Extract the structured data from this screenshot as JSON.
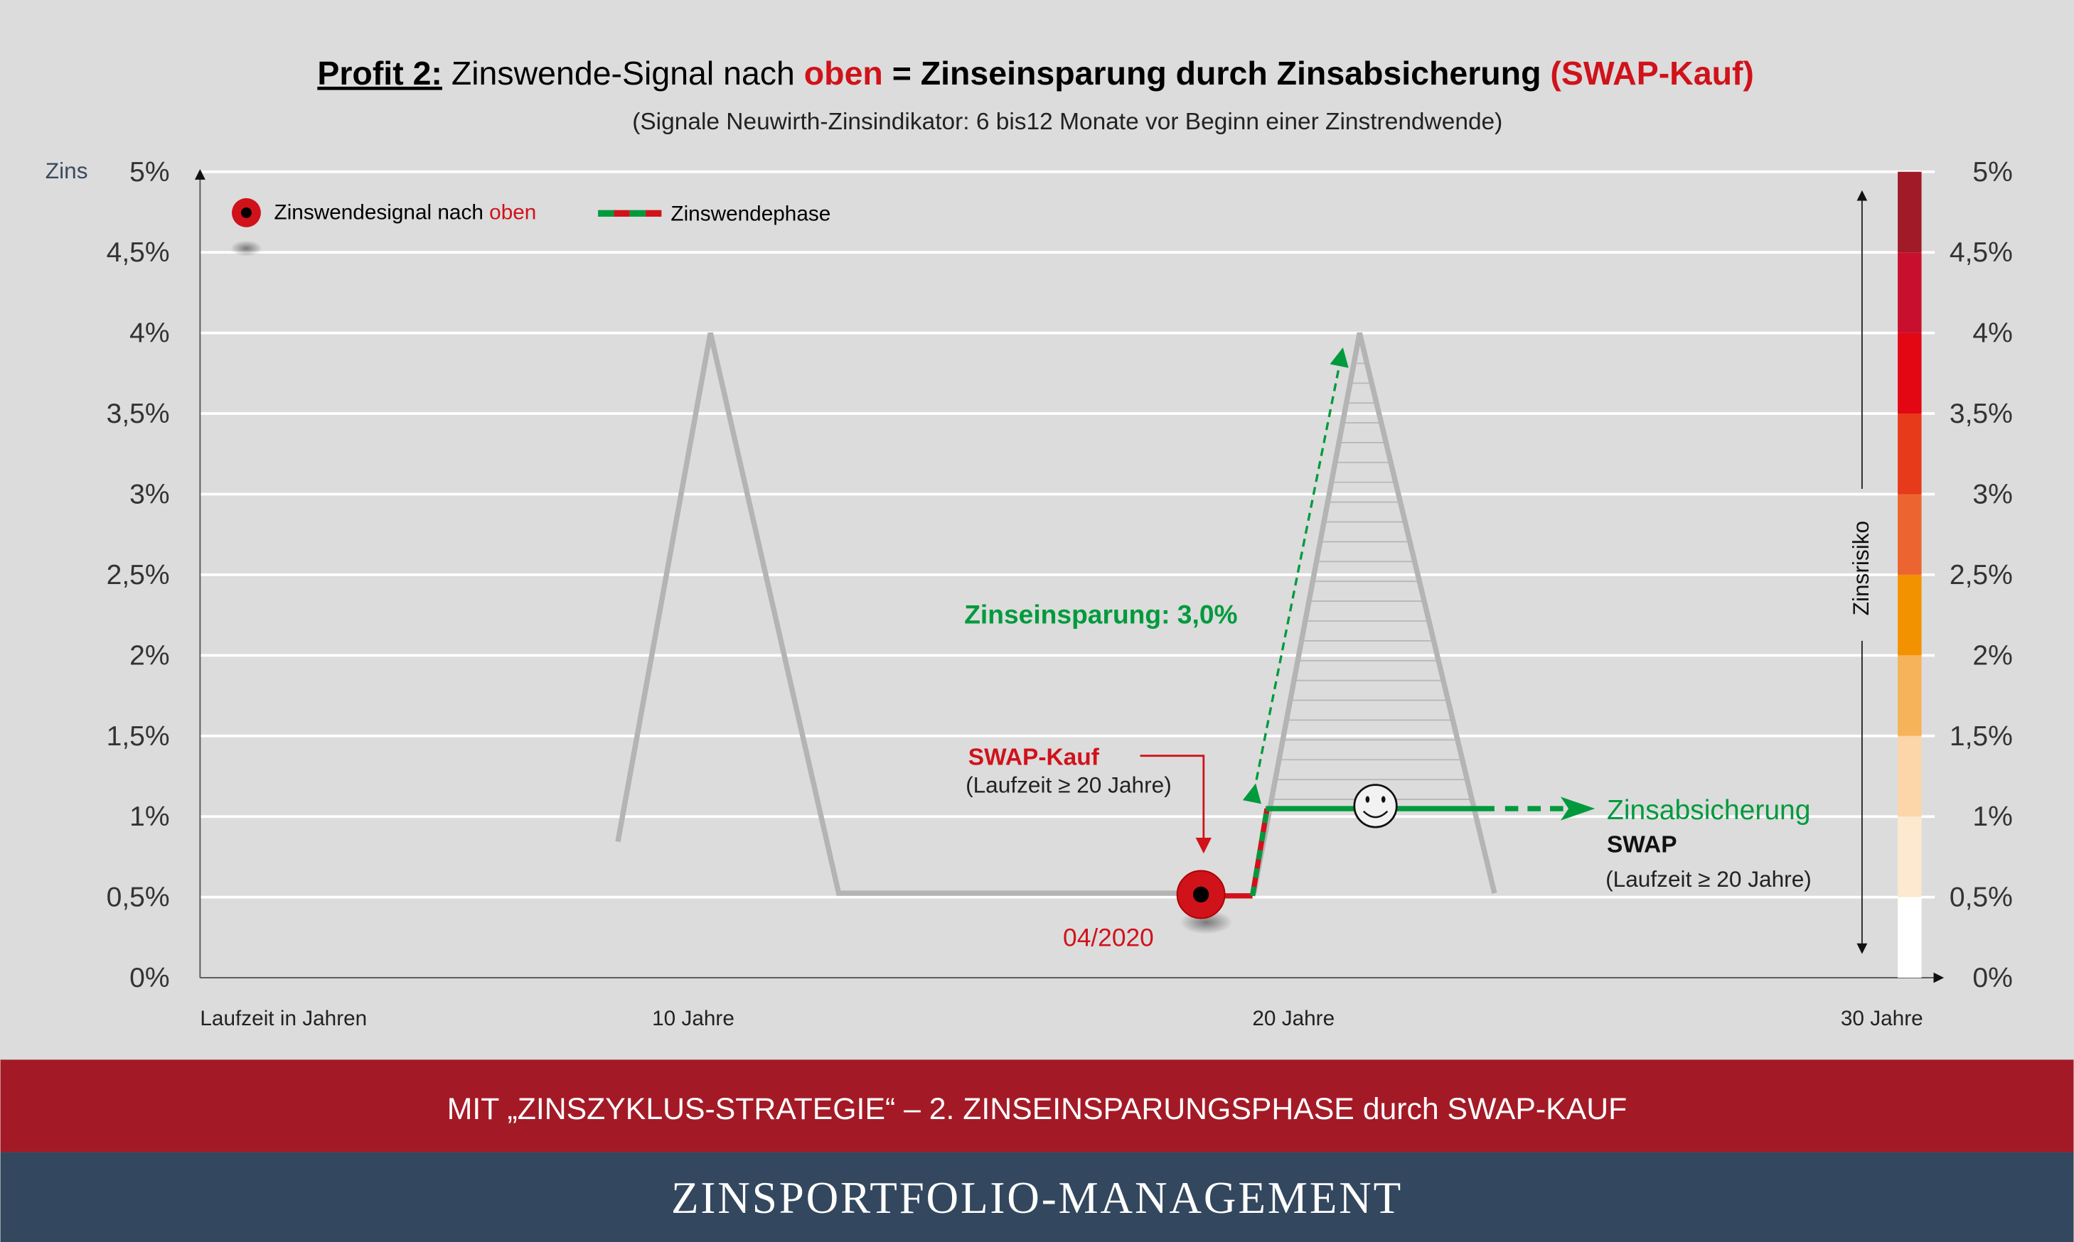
{
  "title": {
    "prefix": "Profit 2:",
    "part1": " Zinswende-Signal nach ",
    "highlight": "oben",
    "part2": " = Zinseinsparung durch Zinsabsicherung ",
    "highlight2": "(SWAP-Kauf)"
  },
  "subtitle": "(Signale Neuwirth-Zinsindikator: 6 bis12 Monate vor Beginn einer Zinstrendwende)",
  "y_axis": {
    "label": "Zins",
    "ticks": [
      "0%",
      "0,5%",
      "1%",
      "1,5%",
      "2%",
      "2,5%",
      "3%",
      "3,5%",
      "4%",
      "4,5%",
      "5%"
    ]
  },
  "x_axis": {
    "label": "Laufzeit in Jahren",
    "ticks": [
      "10 Jahre",
      "20 Jahre",
      "30 Jahre"
    ]
  },
  "legend": {
    "signal": "Zinswendesignal nach ",
    "signal_highlight": "oben",
    "phase": "Zinswendephase"
  },
  "annotations": {
    "savings": "Zinseinsparung: 3,0%",
    "swap_buy": "SWAP-Kauf",
    "swap_buy_term": "(Laufzeit ≥ 20 Jahre)",
    "date": "04/2020",
    "hedge": "Zinsabsicherung",
    "hedge_swap": "SWAP",
    "hedge_term": "(Laufzeit ≥ 20 Jahre)",
    "risk": "Zinsrisiko"
  },
  "risk_scale_colors": [
    "#ffffff",
    "#fde8d0",
    "#fcd6a8",
    "#f7b35a",
    "#f39200",
    "#ec6530",
    "#e63a1a",
    "#e30613",
    "#c8102e",
    "#a01a28"
  ],
  "colors": {
    "red": "#d0121b",
    "green": "#009a3d",
    "banner": "#a31a26",
    "footer": "#33475e"
  },
  "banner": "MIT „ZINSZYKLUS-STRATEGIE“ – 2. ZINSEINSPARUNGSPHASE durch SWAP-KAUF",
  "footer": "ZINSPORTFOLIO-MANAGEMENT"
}
